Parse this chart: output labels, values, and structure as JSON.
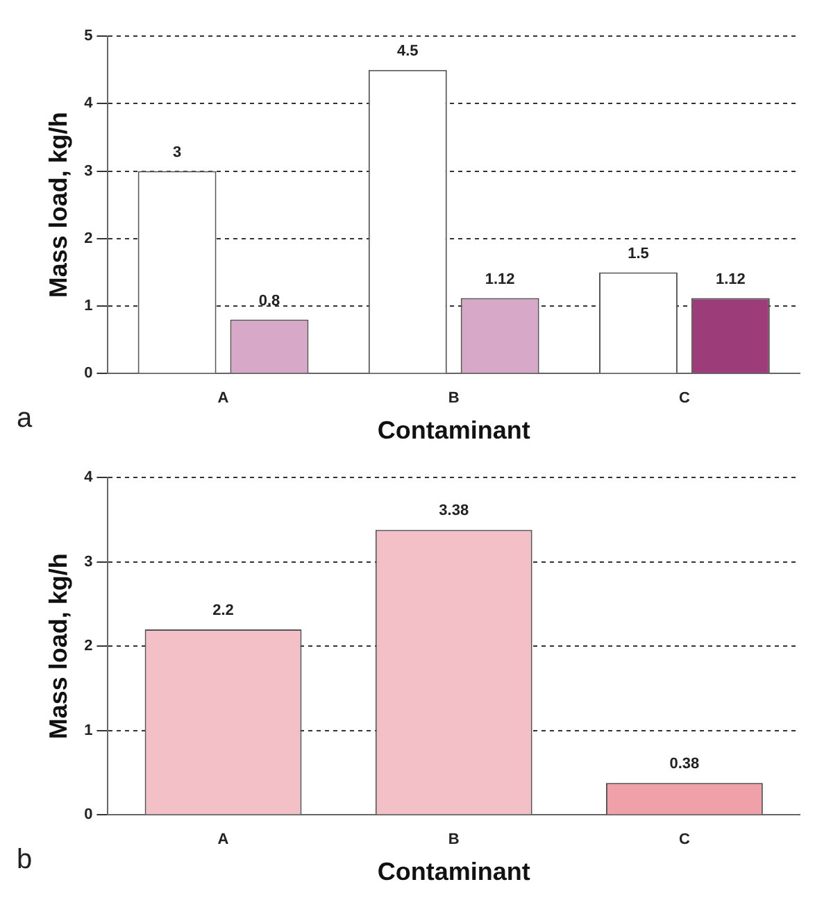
{
  "chart_data": [
    {
      "type": "bar",
      "xlabel": "Contaminant",
      "ylabel": "Mass load, kg/h",
      "categories": [
        "A",
        "B",
        "C"
      ],
      "series": [
        {
          "color": "#ffffff",
          "values": [
            3,
            4.5,
            1.5
          ]
        },
        {
          "colors": [
            "#d8a8c8",
            "#d8a8c8",
            "#9c3c78"
          ],
          "values": [
            0.8,
            1.12,
            1.12
          ]
        }
      ],
      "ylim": [
        0,
        5
      ],
      "yticks": [
        0,
        1,
        2,
        3,
        4,
        5
      ],
      "grid": "y",
      "legend": false,
      "data_labels": true,
      "annotations": [
        "a"
      ]
    },
    {
      "type": "bar",
      "xlabel": "Contaminant",
      "ylabel": "Mass load, kg/h",
      "categories": [
        "A",
        "B",
        "C"
      ],
      "series": [
        {
          "colors": [
            "#f4c0c8",
            "#f4c0c8",
            "#f0a0a8"
          ],
          "values": [
            2.2,
            3.38,
            0.38
          ]
        }
      ],
      "ylim": [
        0,
        4
      ],
      "yticks": [
        0,
        1,
        2,
        3,
        4
      ],
      "grid": "y",
      "legend": false,
      "data_labels": true,
      "annotations": [
        "b"
      ]
    }
  ]
}
